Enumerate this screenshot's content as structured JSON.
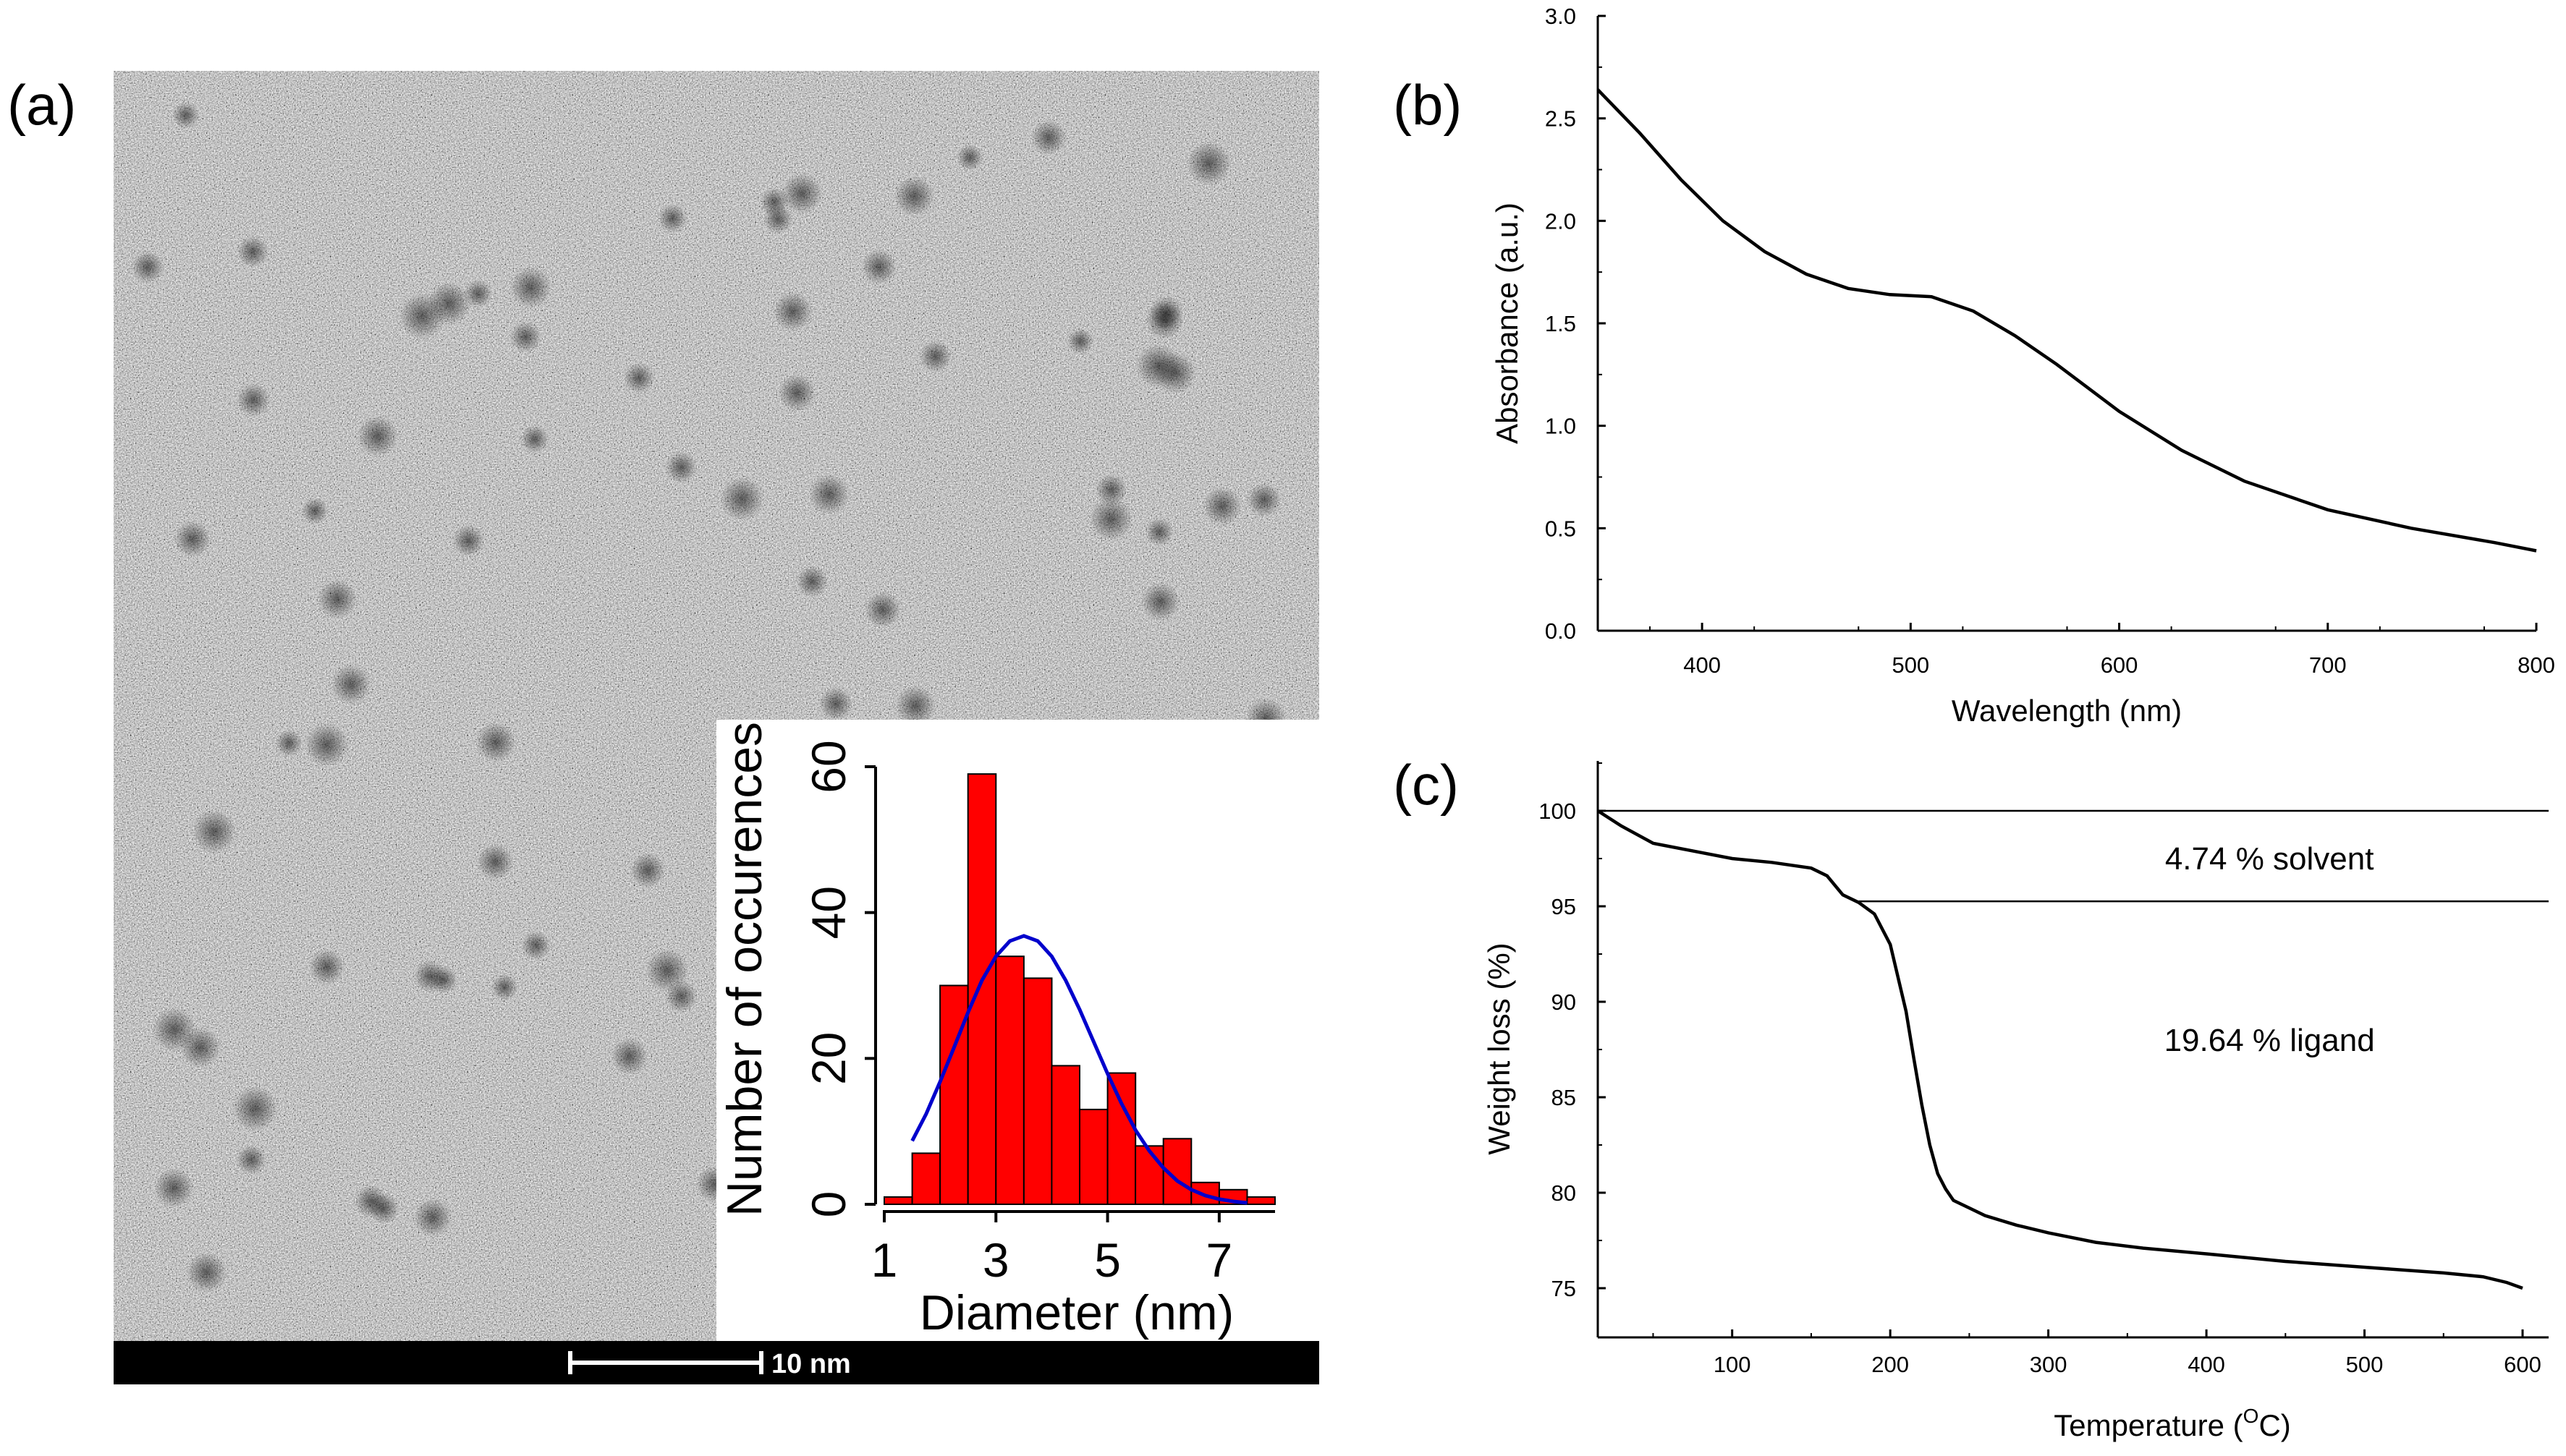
{
  "panel_labels": {
    "a": "(a)",
    "b": "(b)",
    "c": "(c)"
  },
  "tem_image": {
    "description_name": "TEM micrograph",
    "scale_bar_label": "10 nm"
  },
  "chart_data": [
    {
      "id": "a-inset",
      "type": "bar",
      "title": "",
      "xlabel": "Diameter (nm)",
      "ylabel": "Number of occurences",
      "xlim": [
        1,
        8
      ],
      "ylim": [
        0,
        60
      ],
      "xticks": [
        1,
        3,
        5,
        7
      ],
      "yticks": [
        0,
        20,
        40,
        60
      ],
      "bin_width": 0.5,
      "bins_start": [
        1.0,
        1.5,
        2.0,
        2.5,
        3.0,
        3.5,
        4.0,
        4.5,
        5.0,
        5.5,
        6.0,
        6.5,
        7.0,
        7.5
      ],
      "values": [
        1,
        7,
        30,
        59,
        34,
        31,
        19,
        13,
        18,
        8,
        9,
        3,
        2,
        1
      ],
      "bar_color": "#ff0000",
      "fit": {
        "type": "gaussian",
        "color": "#0000cc",
        "x": [
          1.5,
          1.75,
          2.0,
          2.25,
          2.5,
          2.75,
          3.0,
          3.25,
          3.5,
          3.75,
          4.0,
          4.25,
          4.5,
          4.75,
          5.0,
          5.25,
          5.5,
          5.75,
          6.0,
          6.25,
          6.5,
          6.75,
          7.0,
          7.25,
          7.5
        ],
        "y": [
          8.7,
          12.4,
          16.8,
          21.5,
          26.3,
          30.7,
          34.0,
          36.1,
          36.8,
          36.1,
          34.0,
          30.7,
          26.7,
          22.3,
          17.9,
          13.8,
          10.2,
          7.3,
          5.0,
          3.2,
          2.0,
          1.2,
          0.7,
          0.4,
          0.2
        ]
      }
    },
    {
      "id": "b",
      "type": "line",
      "title": "",
      "xlabel": "Wavelength (nm)",
      "ylabel": "Absorbance (a.u.)",
      "xlim": [
        350,
        800
      ],
      "ylim": [
        0.0,
        3.0
      ],
      "xticks": [
        400,
        500,
        600,
        700,
        800
      ],
      "yticks": [
        "0.0",
        "0.5",
        "1.0",
        "1.5",
        "2.0",
        "2.5",
        "3.0"
      ],
      "series": [
        {
          "name": "Absorbance",
          "x": [
            350,
            370,
            390,
            410,
            430,
            450,
            470,
            490,
            510,
            530,
            550,
            570,
            600,
            630,
            660,
            700,
            740,
            780,
            800
          ],
          "y": [
            2.64,
            2.43,
            2.2,
            2.0,
            1.85,
            1.74,
            1.67,
            1.64,
            1.63,
            1.56,
            1.44,
            1.3,
            1.07,
            0.88,
            0.73,
            0.59,
            0.5,
            0.43,
            0.39
          ]
        }
      ]
    },
    {
      "id": "c",
      "type": "line",
      "title": "",
      "xlabel": "Temperature (",
      "xlabel_sup": "O",
      "xlabel_end": "C)",
      "ylabel": "Weight loss (%)",
      "xlim": [
        15,
        600
      ],
      "ylim": [
        73,
        102.5
      ],
      "xticks": [
        100,
        200,
        300,
        400,
        500,
        600
      ],
      "yticks": [
        75,
        80,
        85,
        90,
        95,
        100
      ],
      "hlines": [
        100,
        95.26
      ],
      "hline2_start_x": 180,
      "annotations": [
        {
          "text": "4.74 % solvent",
          "x": 330,
          "y": 97.5
        },
        {
          "text": "19.64 % ligand",
          "x": 330,
          "y": 88.0
        }
      ],
      "series": [
        {
          "name": "TGA",
          "x": [
            15,
            30,
            50,
            75,
            100,
            125,
            150,
            160,
            170,
            180,
            190,
            200,
            210,
            215,
            220,
            225,
            230,
            235,
            240,
            250,
            260,
            280,
            300,
            330,
            360,
            400,
            450,
            500,
            550,
            575,
            590,
            600
          ],
          "y": [
            100,
            99.2,
            98.3,
            97.9,
            97.5,
            97.3,
            97.0,
            96.6,
            95.6,
            95.2,
            94.6,
            93.0,
            89.5,
            87.0,
            84.6,
            82.5,
            81.0,
            80.2,
            79.6,
            79.2,
            78.8,
            78.3,
            77.9,
            77.4,
            77.1,
            76.8,
            76.4,
            76.1,
            75.8,
            75.6,
            75.3,
            75.0
          ]
        }
      ]
    }
  ]
}
